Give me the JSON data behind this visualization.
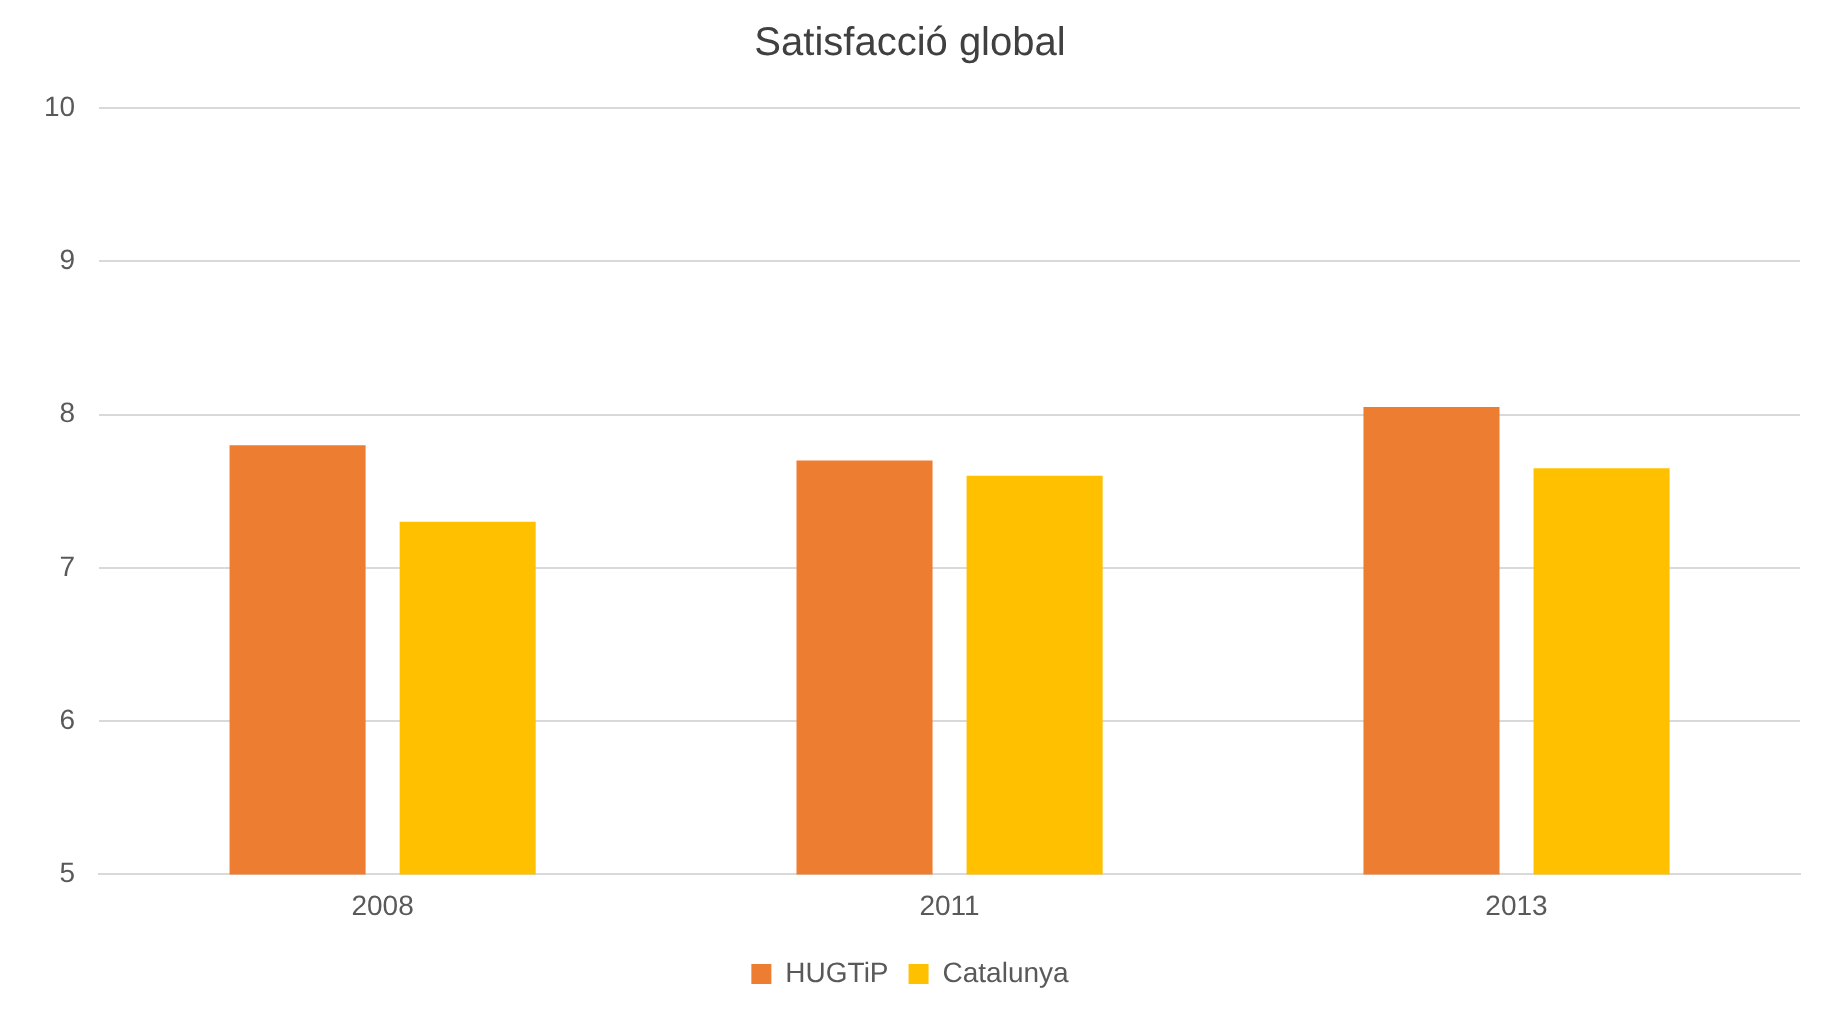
{
  "chart_data": {
    "type": "bar",
    "title": "Satisfacció global",
    "categories": [
      "2008",
      "2011",
      "2013"
    ],
    "series": [
      {
        "name": "HUGTiP",
        "color": "#ed7d31",
        "values": [
          7.8,
          7.7,
          8.05
        ]
      },
      {
        "name": "Catalunya",
        "color": "#ffc000",
        "values": [
          7.3,
          7.6,
          7.65
        ]
      }
    ],
    "ylim": [
      5,
      10
    ],
    "yticks": [
      5,
      6,
      7,
      8,
      9,
      10
    ],
    "grid": "y",
    "legend": "bottom"
  }
}
